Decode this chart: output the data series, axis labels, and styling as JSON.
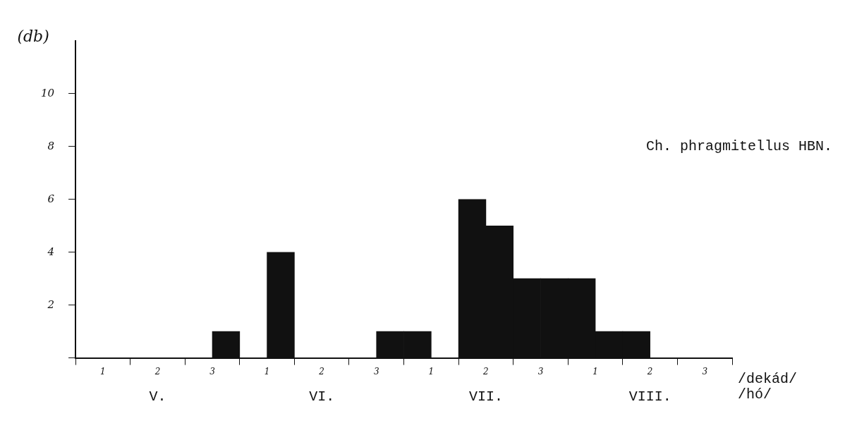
{
  "chart_data": {
    "type": "bar",
    "title": "Ch. phragmitellus HBN.",
    "ylabel": "(db)",
    "xlabel": "/dekád/ /hó/",
    "annotations": [
      "V.",
      "VI.",
      "VII.",
      "VIII."
    ],
    "categories": [
      "1",
      "2",
      "3",
      "1",
      "2",
      "3",
      "1",
      "2",
      "3",
      "1",
      "2",
      "3"
    ],
    "series": [
      {
        "color": "#111111",
        "values": [
          0,
          0,
          0,
          0,
          0,
          0,
          1,
          6,
          3,
          3,
          1,
          0
        ]
      },
      {
        "color": "#111111",
        "values": [
          0,
          0,
          1,
          4,
          0,
          1,
          0,
          5,
          3,
          1,
          0,
          0
        ]
      }
    ],
    "ylim": [
      0,
      12
    ],
    "yticks": [
      {
        "value": 0,
        "label": null
      },
      2,
      4,
      6,
      8,
      10
    ],
    "grid": false,
    "legend": false
  }
}
